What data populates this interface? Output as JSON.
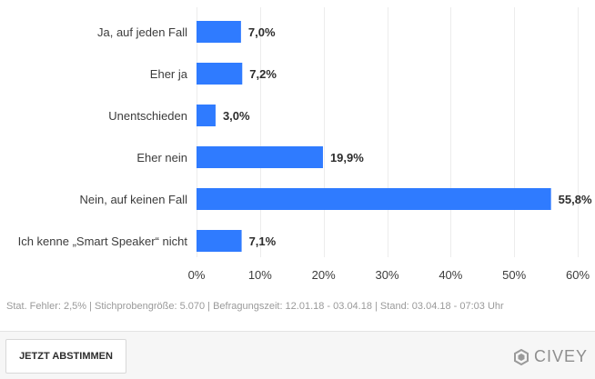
{
  "chart_data": {
    "type": "bar",
    "orientation": "horizontal",
    "categories": [
      "Ja, auf jeden Fall",
      "Eher ja",
      "Unentschieden",
      "Eher nein",
      "Nein, auf keinen Fall",
      "Ich kenne „Smart Speaker“ nicht"
    ],
    "values": [
      7.0,
      7.2,
      3.0,
      19.9,
      55.8,
      7.1
    ],
    "value_labels": [
      "7,0%",
      "7,2%",
      "3,0%",
      "19,9%",
      "55,8%",
      "7,1%"
    ],
    "xlim": [
      0,
      60
    ],
    "x_ticks": [
      0,
      10,
      20,
      30,
      40,
      50,
      60
    ],
    "x_tick_labels": [
      "0%",
      "10%",
      "20%",
      "30%",
      "40%",
      "50%",
      "60%"
    ],
    "grid": true,
    "bar_color": "#2f7bff"
  },
  "footnote": "Stat. Fehler: 2,5% | Stichprobengröße: 5.070 | Befragungszeit: 12.01.18 - 03.04.18 | Stand: 03.04.18 - 07:03 Uhr",
  "vote_button_label": "JETZT ABSTIMMEN",
  "brand": {
    "name": "CIVEY",
    "icon": "civey-logo-icon"
  }
}
